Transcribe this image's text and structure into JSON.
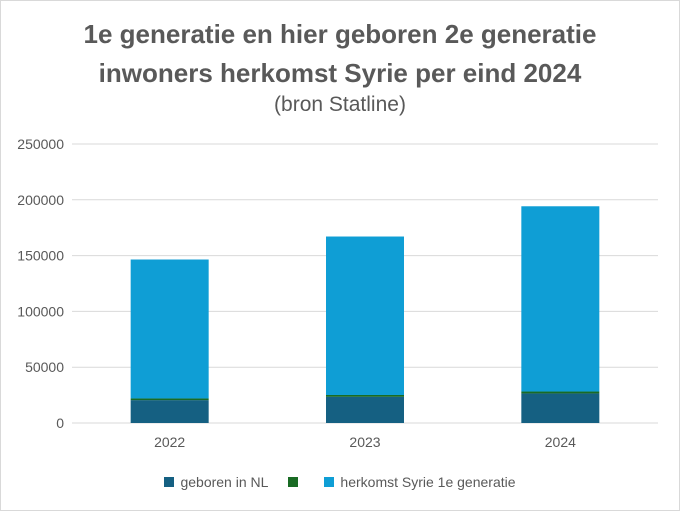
{
  "chart_data": {
    "type": "bar",
    "stacked": true,
    "title": "1e generatie en hier geboren 2e generatie",
    "title_line2": "inwoners herkomst Syrie  per eind 2024",
    "subtitle": "(bron Statline)",
    "categories": [
      "2022",
      "2023",
      "2024"
    ],
    "series": [
      {
        "name": "geboren in NL",
        "color": "#156082",
        "values": [
          20500,
          23500,
          26500
        ]
      },
      {
        "name": "",
        "color": "#196b24",
        "values": [
          1500,
          1600,
          1700
        ]
      },
      {
        "name": "herkomst Syrie 1e generatie",
        "color": "#0f9ed5",
        "values": [
          124500,
          142000,
          166000
        ]
      }
    ],
    "yticks": [
      "0",
      "50000",
      "100000",
      "150000",
      "200000",
      "250000"
    ],
    "ylim": [
      0,
      250000
    ],
    "grid": true,
    "legend_position": "bottom"
  }
}
